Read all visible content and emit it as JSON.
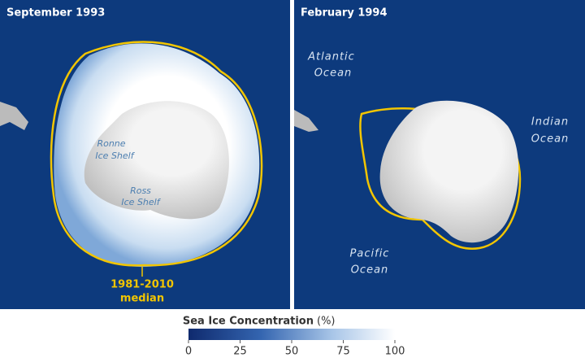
{
  "panels": [
    {
      "title": "September 1993",
      "labels": [
        [
          "Ronne",
          "Ice Shelf"
        ],
        [
          "Ross",
          "Ice Shelf"
        ]
      ],
      "median_label": [
        "1981-2010",
        "median"
      ]
    },
    {
      "title": "February 1994",
      "labels": [
        [
          "Atlantic",
          "Ocean"
        ],
        [
          "Indian",
          "Ocean"
        ],
        [
          "Pacific",
          "Ocean"
        ]
      ]
    }
  ],
  "colorbar": {
    "title": "Sea Ice Concentration",
    "unit": "(%)",
    "lim": [
      0,
      100
    ],
    "ticks": [
      0,
      25,
      50,
      75,
      100
    ]
  }
}
